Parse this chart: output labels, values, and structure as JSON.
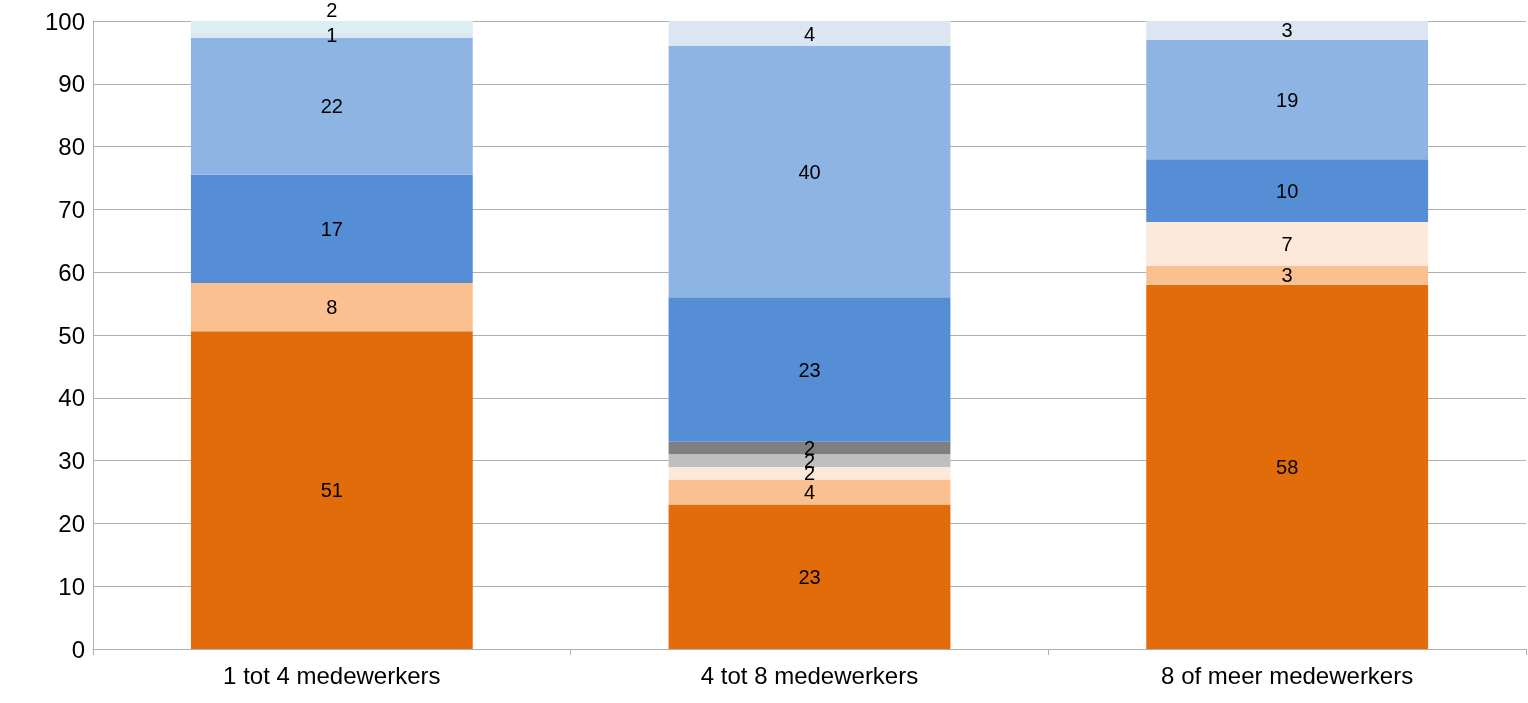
{
  "chart_data": {
    "type": "bar",
    "stacked": true,
    "grid": "y",
    "categories": [
      "1 tot 4 medewerkers",
      "4 tot 8 medewerkers",
      "8 of meer medewerkers"
    ],
    "ylim": [
      0,
      100
    ],
    "yticks": [
      0,
      10,
      20,
      30,
      40,
      50,
      60,
      70,
      80,
      90,
      100
    ],
    "series": [
      {
        "color": "#e36c0a",
        "values": [
          50.6,
          23,
          58
        ],
        "value_labels": [
          "51",
          "23",
          "58"
        ]
      },
      {
        "color": "#fac090",
        "values": [
          7.7,
          4,
          3
        ],
        "value_labels": [
          "8",
          "4",
          "3"
        ]
      },
      {
        "color": "#fde9d9",
        "values": [
          null,
          2,
          7
        ],
        "value_labels": [
          null,
          "2",
          "7"
        ]
      },
      {
        "color": "#bfbfbf",
        "values": [
          null,
          2,
          null
        ],
        "value_labels": [
          null,
          "2",
          null
        ]
      },
      {
        "color": "#7f7f7f",
        "values": [
          null,
          2,
          null
        ],
        "value_labels": [
          null,
          "2",
          null
        ]
      },
      {
        "color": "#558ed5",
        "values": [
          17.2,
          23,
          10
        ],
        "value_labels": [
          "17",
          "23",
          "10"
        ]
      },
      {
        "color": "#8eb4e3",
        "values": [
          21.8,
          40,
          19
        ],
        "value_labels": [
          "22",
          "40",
          "19"
        ]
      },
      {
        "color": "#dce6f2",
        "values": [
          0.8,
          4,
          3
        ],
        "value_labels": [
          "1",
          "4",
          "3"
        ]
      },
      {
        "color": "#dbeef4",
        "values": [
          1.9,
          null,
          null
        ],
        "value_labels": [
          "2",
          null,
          null
        ]
      }
    ]
  }
}
